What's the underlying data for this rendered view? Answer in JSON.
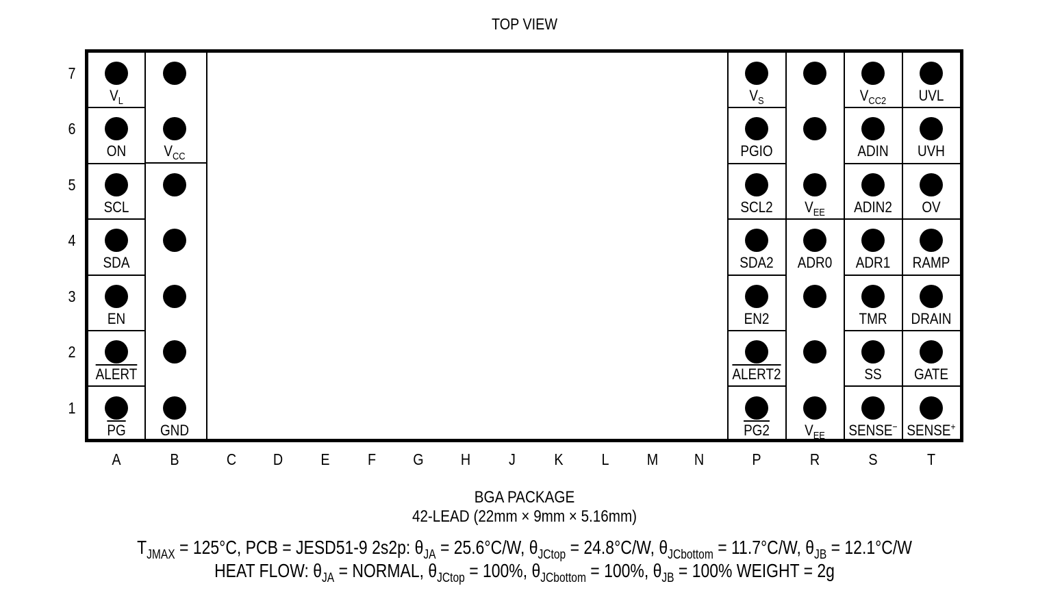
{
  "title": "TOP VIEW",
  "rows": [
    "7",
    "6",
    "5",
    "4",
    "3",
    "2",
    "1"
  ],
  "columns": [
    "A",
    "B",
    "C",
    "D",
    "E",
    "F",
    "G",
    "H",
    "J",
    "K",
    "L",
    "M",
    "N",
    "P",
    "R",
    "S",
    "T"
  ],
  "pins": {
    "A": {
      "7": "V_L",
      "6": "ON",
      "5": "SCL",
      "4": "SDA",
      "3": "EN",
      "2": "ALERT",
      "1": "PG"
    },
    "B": {
      "6": "V_CC",
      "1": "GND"
    },
    "P": {
      "7": "V_S",
      "6": "PGIO",
      "5": "SCL2",
      "4": "SDA2",
      "3": "EN2",
      "2": "ALERT2",
      "1": "PG2"
    },
    "R": {
      "5": "V_EE",
      "4": "ADR0",
      "1": "V_EE"
    },
    "S": {
      "7": "V_CC2",
      "6": "ADIN",
      "5": "ADIN2",
      "4": "ADR1",
      "3": "TMR",
      "2": "SS",
      "1": "SENSE−"
    },
    "T": {
      "7": "UVL",
      "6": "UVH",
      "5": "OV",
      "4": "RAMP",
      "3": "DRAIN",
      "2": "GATE",
      "1": "SENSE+"
    }
  },
  "package": {
    "line1": "BGA PACKAGE",
    "line2": "42-LEAD (22mm × 9mm × 5.16mm)"
  },
  "thermal": {
    "line1_parts": [
      "T",
      "JMAX",
      " = 125°C, PCB = JESD51-9 2s2p: θ",
      "JA",
      " = 25.6°C/W, θ",
      "JCtop",
      " = 24.8°C/W, θ",
      "JCbottom",
      " = 11.7°C/W, θ",
      "JB",
      " = 12.1°C/W"
    ],
    "line2_parts": [
      "HEAT FLOW: θ",
      "JA",
      " = NORMAL, θ",
      "JCtop",
      " = 100%, θ",
      "JCbottom",
      " = 100%, θ",
      "JB",
      " = 100% WEIGHT = 2g"
    ]
  }
}
